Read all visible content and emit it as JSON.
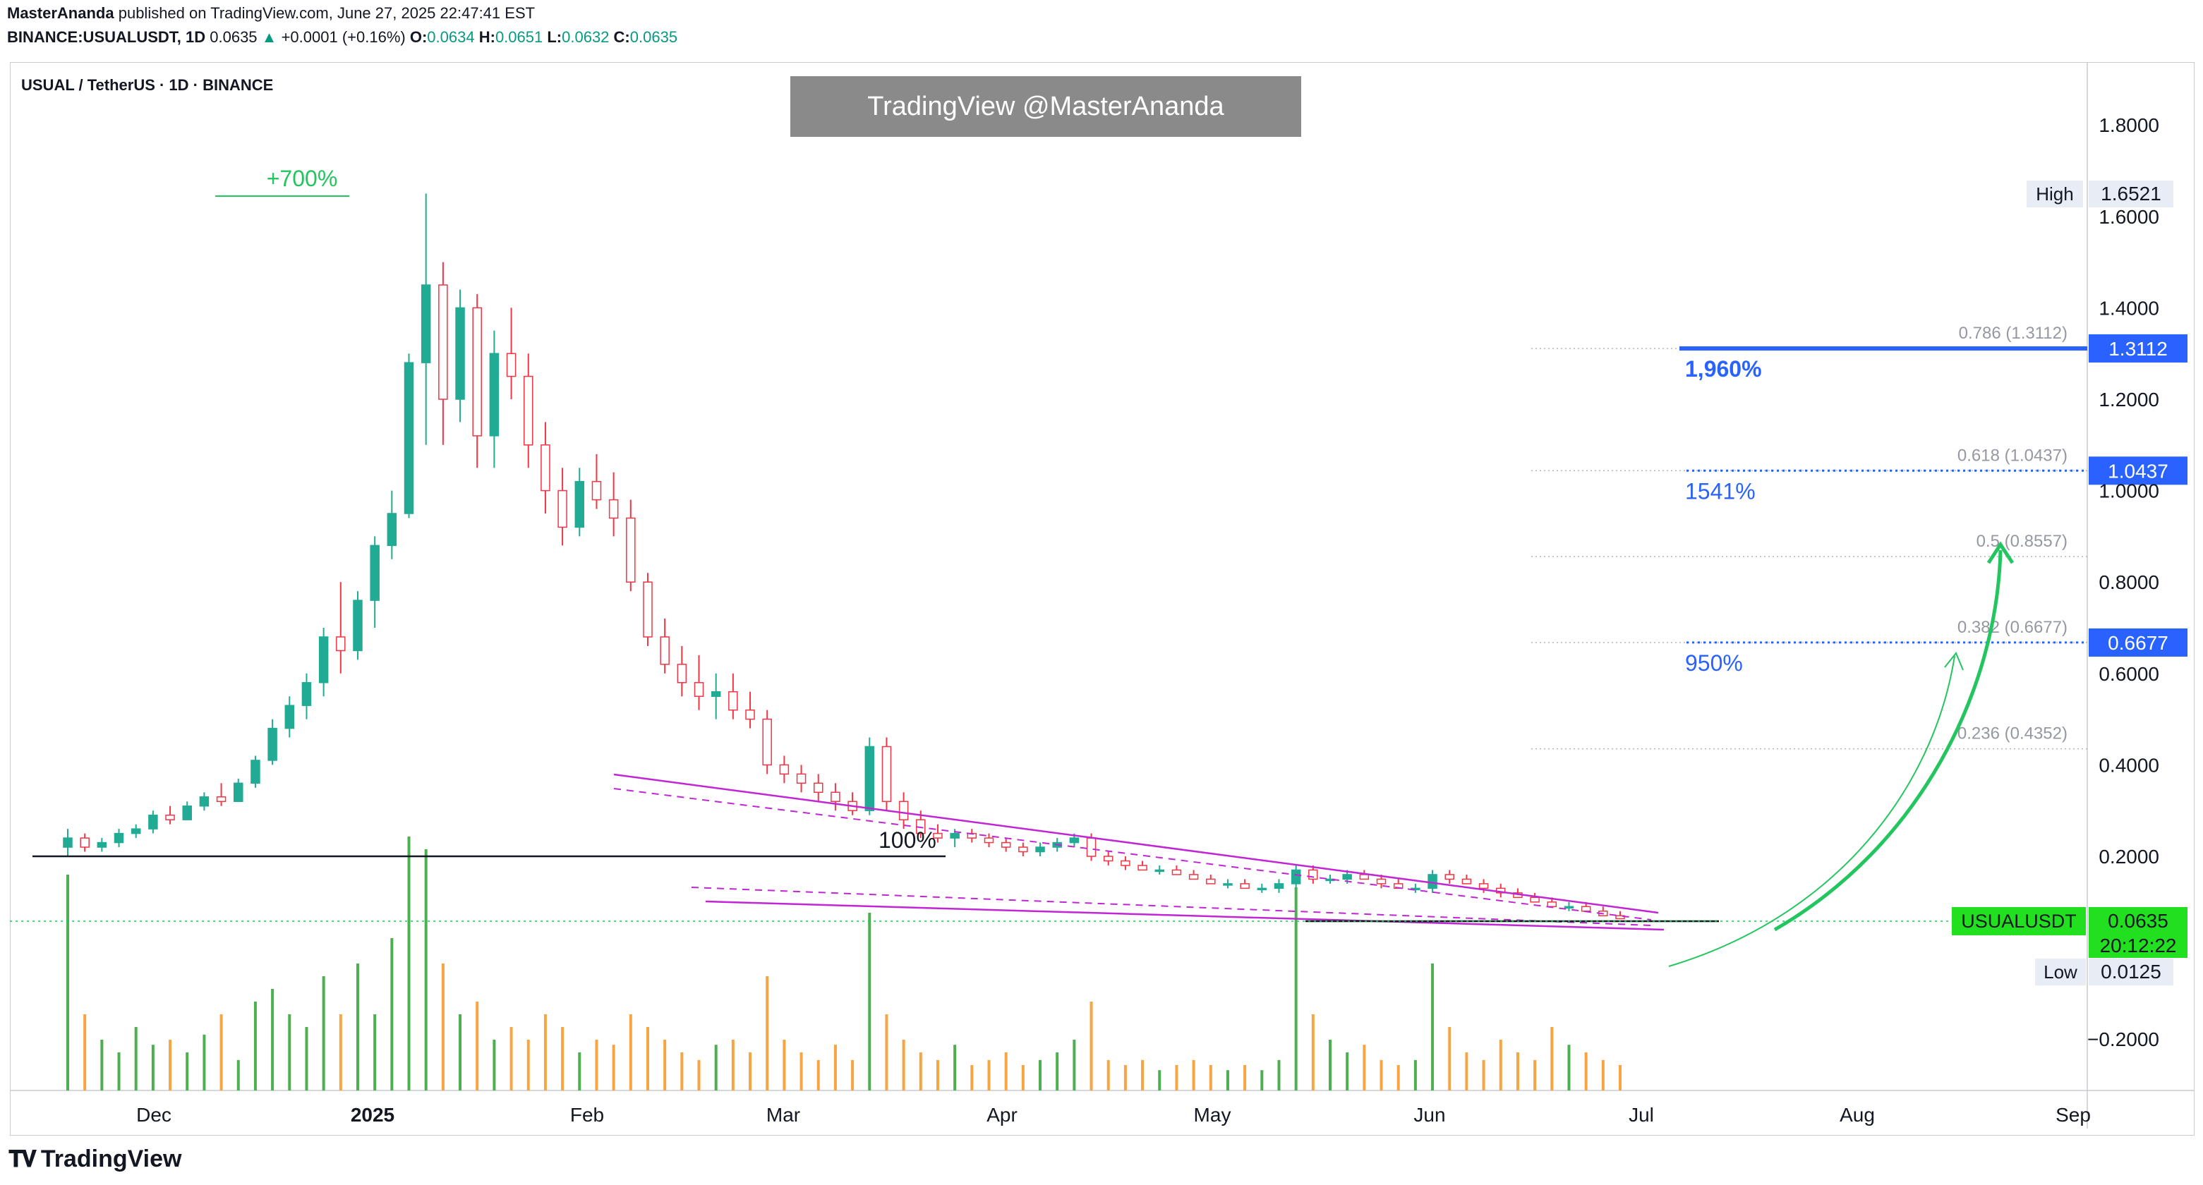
{
  "header": {
    "author": "MasterAnanda",
    "published": "published on TradingView.com, June 27, 2025 22:47:41 EST",
    "symbol_line": "BINANCE:USUALUSDT, 1D",
    "last": "0.0635",
    "change": "+0.0001 (+0.16%)",
    "o_label": "O:",
    "o": "0.0634",
    "h_label": "H:",
    "h": "0.0651",
    "l_label": "L:",
    "l": "0.0632",
    "c_label": "C:",
    "c": "0.0635"
  },
  "chart_title": "USUAL / TetherUS · 1D · BINANCE",
  "watermark": "TradingView @MasterAnanda",
  "footer_brand": "TradingView",
  "colors": {
    "up": "#22ab94",
    "down": "#f23645",
    "vol_up": "#4caf50",
    "vol_down": "#f7a542",
    "accent_blue": "#2962ff",
    "green": "#22c55e",
    "magenta": "#c026d3",
    "grid_dot": "#b2b5be"
  },
  "chart_data": {
    "type": "candlestick",
    "y_axis_ticks": [
      "1.8000",
      "1.6000",
      "1.4000",
      "1.2000",
      "1.0000",
      "0.8000",
      "0.6000",
      "0.4000",
      "0.2000",
      "−0.2000"
    ],
    "x_axis_ticks": [
      "Dec",
      "2025",
      "Feb",
      "Mar",
      "Apr",
      "May",
      "Jun",
      "Jul",
      "Aug",
      "Sep"
    ],
    "ylim": [
      -0.3,
      1.95
    ],
    "price_labels": {
      "high_label": "High",
      "high": "1.6521",
      "low_label": "Low",
      "low": "0.0125",
      "symbol": "USUALUSDT",
      "last": "0.0635",
      "countdown": "20:12:22"
    },
    "fib_levels": [
      {
        "label": "0.786 (1.3112)",
        "price": 1.3112,
        "tag": "1.3112",
        "target": "1,960%",
        "style": "solid"
      },
      {
        "label": "0.618 (1.0437)",
        "price": 1.0437,
        "tag": "1.0437",
        "target": "1541%",
        "style": "dotted"
      },
      {
        "label": "0.5 (0.8557)",
        "price": 0.8557,
        "tag": "",
        "target": "",
        "style": "faint"
      },
      {
        "label": "0.382 (0.6677)",
        "price": 0.6677,
        "tag": "0.6677",
        "target": "950%",
        "style": "dotted"
      },
      {
        "label": "0.236 (0.4352)",
        "price": 0.4352,
        "tag": "",
        "target": "",
        "style": "faint"
      }
    ],
    "annotations": {
      "peak_gain": "+700%",
      "support_pct": "100%"
    },
    "ohlc_series": [
      [
        0.22,
        0.26,
        0.2,
        0.24
      ],
      [
        0.24,
        0.25,
        0.21,
        0.22
      ],
      [
        0.22,
        0.24,
        0.21,
        0.23
      ],
      [
        0.23,
        0.26,
        0.22,
        0.25
      ],
      [
        0.25,
        0.27,
        0.24,
        0.26
      ],
      [
        0.26,
        0.3,
        0.25,
        0.29
      ],
      [
        0.29,
        0.31,
        0.27,
        0.28
      ],
      [
        0.28,
        0.32,
        0.28,
        0.31
      ],
      [
        0.31,
        0.34,
        0.3,
        0.33
      ],
      [
        0.33,
        0.36,
        0.31,
        0.32
      ],
      [
        0.32,
        0.37,
        0.32,
        0.36
      ],
      [
        0.36,
        0.42,
        0.35,
        0.41
      ],
      [
        0.41,
        0.5,
        0.4,
        0.48
      ],
      [
        0.48,
        0.55,
        0.46,
        0.53
      ],
      [
        0.53,
        0.6,
        0.5,
        0.58
      ],
      [
        0.58,
        0.7,
        0.55,
        0.68
      ],
      [
        0.68,
        0.8,
        0.6,
        0.65
      ],
      [
        0.65,
        0.78,
        0.63,
        0.76
      ],
      [
        0.76,
        0.9,
        0.7,
        0.88
      ],
      [
        0.88,
        1.0,
        0.85,
        0.95
      ],
      [
        0.95,
        1.3,
        0.94,
        1.28
      ],
      [
        1.28,
        1.65,
        1.1,
        1.45
      ],
      [
        1.45,
        1.5,
        1.1,
        1.2
      ],
      [
        1.2,
        1.44,
        1.15,
        1.4
      ],
      [
        1.4,
        1.43,
        1.05,
        1.12
      ],
      [
        1.12,
        1.35,
        1.05,
        1.3
      ],
      [
        1.3,
        1.4,
        1.2,
        1.25
      ],
      [
        1.25,
        1.3,
        1.05,
        1.1
      ],
      [
        1.1,
        1.15,
        0.95,
        1.0
      ],
      [
        1.0,
        1.05,
        0.88,
        0.92
      ],
      [
        0.92,
        1.05,
        0.9,
        1.02
      ],
      [
        1.02,
        1.08,
        0.96,
        0.98
      ],
      [
        0.98,
        1.04,
        0.9,
        0.94
      ],
      [
        0.94,
        0.98,
        0.78,
        0.8
      ],
      [
        0.8,
        0.82,
        0.66,
        0.68
      ],
      [
        0.68,
        0.72,
        0.6,
        0.62
      ],
      [
        0.62,
        0.66,
        0.55,
        0.58
      ],
      [
        0.58,
        0.64,
        0.52,
        0.55
      ],
      [
        0.55,
        0.6,
        0.5,
        0.56
      ],
      [
        0.56,
        0.6,
        0.5,
        0.52
      ],
      [
        0.52,
        0.56,
        0.48,
        0.5
      ],
      [
        0.5,
        0.52,
        0.38,
        0.4
      ],
      [
        0.4,
        0.42,
        0.36,
        0.38
      ],
      [
        0.38,
        0.4,
        0.34,
        0.36
      ],
      [
        0.36,
        0.38,
        0.32,
        0.34
      ],
      [
        0.34,
        0.36,
        0.3,
        0.32
      ],
      [
        0.32,
        0.34,
        0.29,
        0.3
      ],
      [
        0.3,
        0.46,
        0.29,
        0.44
      ],
      [
        0.44,
        0.46,
        0.3,
        0.32
      ],
      [
        0.32,
        0.34,
        0.26,
        0.28
      ],
      [
        0.28,
        0.3,
        0.24,
        0.25
      ],
      [
        0.25,
        0.27,
        0.23,
        0.24
      ],
      [
        0.24,
        0.26,
        0.22,
        0.25
      ],
      [
        0.25,
        0.26,
        0.23,
        0.24
      ],
      [
        0.24,
        0.25,
        0.22,
        0.23
      ],
      [
        0.23,
        0.24,
        0.21,
        0.22
      ],
      [
        0.22,
        0.23,
        0.2,
        0.21
      ],
      [
        0.21,
        0.23,
        0.2,
        0.22
      ],
      [
        0.22,
        0.24,
        0.21,
        0.23
      ],
      [
        0.23,
        0.25,
        0.22,
        0.24
      ],
      [
        0.24,
        0.25,
        0.19,
        0.2
      ],
      [
        0.2,
        0.21,
        0.18,
        0.19
      ],
      [
        0.19,
        0.2,
        0.17,
        0.18
      ],
      [
        0.18,
        0.19,
        0.17,
        0.17
      ],
      [
        0.17,
        0.18,
        0.16,
        0.17
      ],
      [
        0.17,
        0.18,
        0.16,
        0.16
      ],
      [
        0.16,
        0.17,
        0.15,
        0.15
      ],
      [
        0.15,
        0.16,
        0.14,
        0.14
      ],
      [
        0.14,
        0.15,
        0.13,
        0.14
      ],
      [
        0.14,
        0.15,
        0.13,
        0.13
      ],
      [
        0.13,
        0.14,
        0.12,
        0.13
      ],
      [
        0.13,
        0.15,
        0.12,
        0.14
      ],
      [
        0.14,
        0.18,
        0.13,
        0.17
      ],
      [
        0.17,
        0.18,
        0.14,
        0.15
      ],
      [
        0.15,
        0.16,
        0.14,
        0.15
      ],
      [
        0.15,
        0.17,
        0.14,
        0.16
      ],
      [
        0.16,
        0.17,
        0.15,
        0.15
      ],
      [
        0.15,
        0.16,
        0.13,
        0.14
      ],
      [
        0.14,
        0.15,
        0.13,
        0.13
      ],
      [
        0.13,
        0.14,
        0.12,
        0.13
      ],
      [
        0.13,
        0.17,
        0.12,
        0.16
      ],
      [
        0.16,
        0.17,
        0.14,
        0.15
      ],
      [
        0.15,
        0.16,
        0.14,
        0.14
      ],
      [
        0.14,
        0.15,
        0.12,
        0.13
      ],
      [
        0.13,
        0.14,
        0.11,
        0.12
      ],
      [
        0.12,
        0.13,
        0.11,
        0.11
      ],
      [
        0.11,
        0.12,
        0.1,
        0.1
      ],
      [
        0.1,
        0.11,
        0.09,
        0.09
      ],
      [
        0.09,
        0.1,
        0.08,
        0.09
      ],
      [
        0.09,
        0.1,
        0.08,
        0.08
      ],
      [
        0.08,
        0.09,
        0.07,
        0.07
      ],
      [
        0.07,
        0.08,
        0.065,
        0.0635
      ]
    ],
    "volume_series": [
      0.85,
      0.3,
      0.2,
      0.15,
      0.25,
      0.18,
      0.2,
      0.15,
      0.22,
      0.3,
      0.12,
      0.35,
      0.4,
      0.3,
      0.25,
      0.45,
      0.3,
      0.5,
      0.3,
      0.6,
      1.0,
      0.95,
      0.5,
      0.3,
      0.35,
      0.2,
      0.25,
      0.2,
      0.3,
      0.25,
      0.15,
      0.2,
      0.18,
      0.3,
      0.25,
      0.2,
      0.15,
      0.12,
      0.18,
      0.2,
      0.15,
      0.45,
      0.2,
      0.15,
      0.12,
      0.18,
      0.12,
      0.7,
      0.3,
      0.2,
      0.15,
      0.12,
      0.18,
      0.1,
      0.12,
      0.15,
      0.1,
      0.12,
      0.15,
      0.2,
      0.35,
      0.12,
      0.1,
      0.12,
      0.08,
      0.1,
      0.12,
      0.1,
      0.08,
      0.1,
      0.08,
      0.12,
      0.8,
      0.3,
      0.2,
      0.15,
      0.18,
      0.12,
      0.1,
      0.12,
      0.5,
      0.25,
      0.15,
      0.12,
      0.2,
      0.15,
      0.12,
      0.25,
      0.18,
      0.15,
      0.12,
      0.1
    ]
  }
}
